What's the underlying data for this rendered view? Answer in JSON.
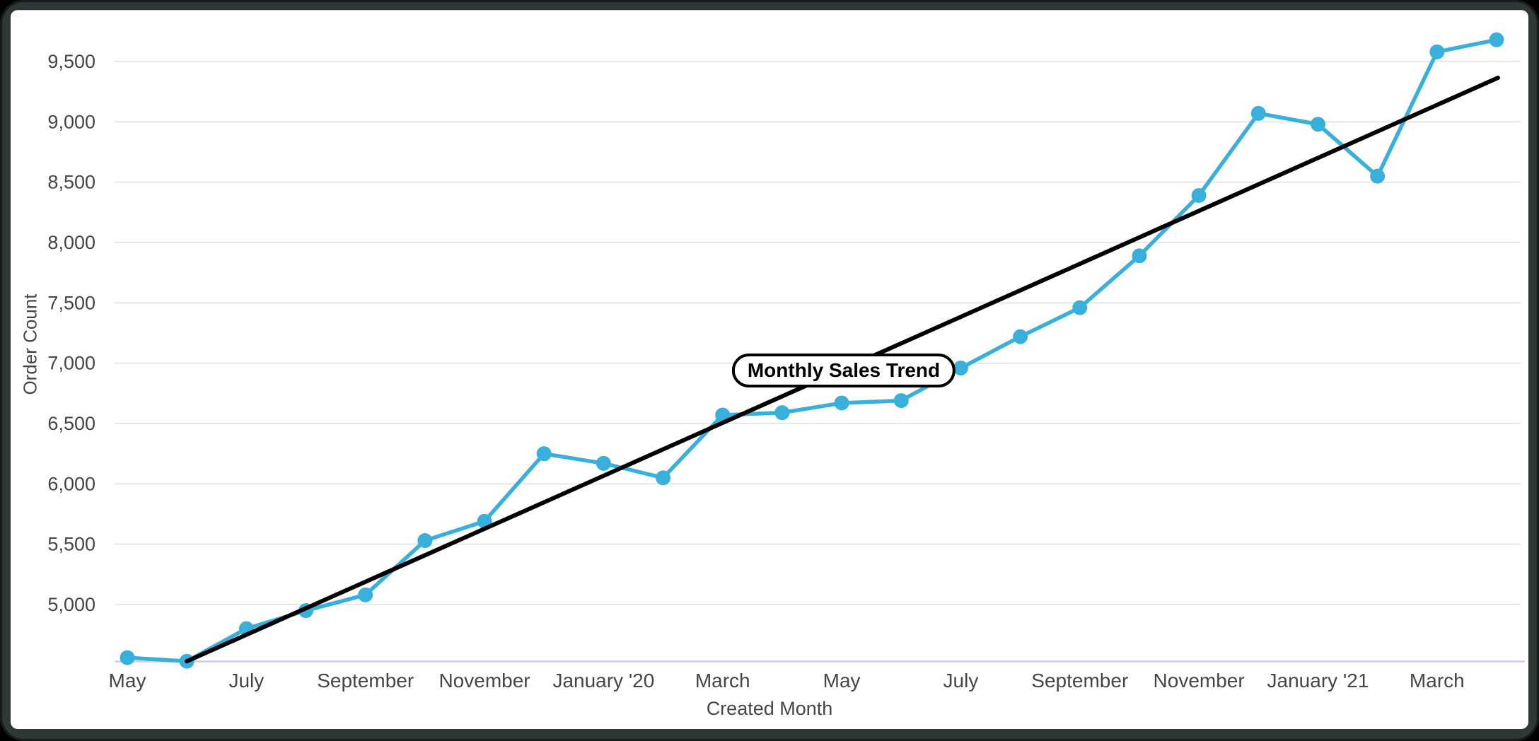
{
  "window": {
    "page_background": "#000000",
    "frame_color": "#2d3837",
    "card_color": "#ffffff"
  },
  "chart_data": {
    "type": "line",
    "annotation_label": "Monthly Sales Trend",
    "xlabel": "Created Month",
    "ylabel": "Order Count",
    "grid": true,
    "legend_position": "none",
    "categories": [
      "May 2019",
      "Jun 2019",
      "Jul 2019",
      "Aug 2019",
      "Sep 2019",
      "Oct 2019",
      "Nov 2019",
      "Dec 2019",
      "Jan 2020",
      "Feb 2020",
      "Mar 2020",
      "Apr 2020",
      "May 2020",
      "Jun 2020",
      "Jul 2020",
      "Aug 2020",
      "Sep 2020",
      "Oct 2020",
      "Nov 2020",
      "Dec 2020",
      "Jan 2021",
      "Feb 2021",
      "Mar 2021",
      "Apr 2021"
    ],
    "x_tick_labels": [
      "May",
      "July",
      "September",
      "November",
      "January '20",
      "March",
      "May",
      "July",
      "September",
      "November",
      "January '21",
      "March"
    ],
    "yticks": [
      5000,
      5500,
      6000,
      6500,
      7000,
      7500,
      8000,
      8500,
      9000,
      9500
    ],
    "y_tick_labels": [
      "5,000",
      "5,500",
      "6,000",
      "6,500",
      "7,000",
      "7,500",
      "8,000",
      "8,500",
      "9,000",
      "9,500"
    ],
    "ylim": [
      4530,
      9830
    ],
    "series": [
      {
        "name": "Order Count",
        "color": "#39afdb",
        "values": [
          4560,
          4530,
          4800,
          4950,
          5080,
          5530,
          5690,
          6250,
          6170,
          6050,
          6570,
          6590,
          6670,
          6690,
          6960,
          7220,
          7460,
          7890,
          8390,
          9070,
          8980,
          8550,
          9580,
          9680
        ]
      },
      {
        "name": "Linear Trend",
        "type": "linear_trend",
        "color": "#000000",
        "start": {
          "month_index": 1,
          "value": 4530
        },
        "end": {
          "month_index": 23,
          "value": 9365
        }
      }
    ],
    "style": {
      "gridline_color": "#e7e7e7",
      "axis_line_color": "#c8d1e8",
      "tick_label_color": "#424649",
      "marker_radius": 10.5,
      "line_width": 5.5,
      "trend_line_width": 6
    }
  }
}
